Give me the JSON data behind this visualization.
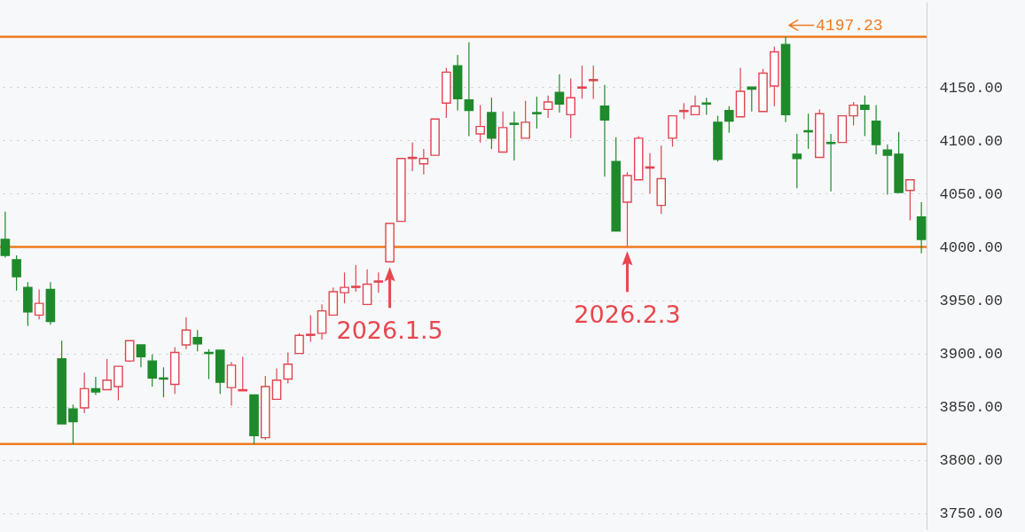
{
  "chart_data": {
    "type": "candlestick",
    "categories": [
      null,
      null,
      null,
      null,
      null,
      null,
      null,
      null,
      null,
      null,
      null,
      null,
      null,
      null,
      null,
      null,
      null,
      null,
      null,
      null,
      null,
      null,
      null,
      null,
      null,
      null,
      null,
      null,
      null,
      null,
      null,
      null,
      null,
      null,
      null,
      null,
      null,
      null,
      null,
      null,
      null,
      null,
      null,
      null,
      null,
      null,
      null,
      null,
      null,
      null,
      null,
      null,
      null,
      null,
      null,
      null,
      null,
      null,
      null,
      null,
      null,
      null,
      null,
      null,
      null,
      null,
      null,
      null,
      null,
      null,
      null,
      null,
      null,
      null,
      null,
      null,
      null,
      null,
      null,
      null,
      null,
      null
    ],
    "ohlc": [
      [
        4007,
        4033,
        3990,
        3992
      ],
      [
        3988,
        3992,
        3959,
        3972
      ],
      [
        3962,
        3967,
        3926,
        3939
      ],
      [
        3936,
        3960,
        3932,
        3947
      ],
      [
        3960,
        3967,
        3927,
        3930
      ],
      [
        3895,
        3912,
        3834,
        3834
      ],
      [
        3848,
        3852,
        3815,
        3836
      ],
      [
        3849,
        3882,
        3844,
        3867
      ],
      [
        3867,
        3878,
        3861,
        3864
      ],
      [
        3866,
        3895,
        3866,
        3875
      ],
      [
        3869,
        3888,
        3856,
        3888
      ],
      [
        3893,
        3912,
        3892,
        3912
      ],
      [
        3908,
        3908,
        3887,
        3897
      ],
      [
        3893,
        3899,
        3869,
        3877
      ],
      [
        3877,
        3887,
        3859,
        3876
      ],
      [
        3871,
        3906,
        3862,
        3901
      ],
      [
        3908,
        3934,
        3904,
        3922
      ],
      [
        3915,
        3922,
        3902,
        3909
      ],
      [
        3901,
        3904,
        3876,
        3900
      ],
      [
        3903,
        3903,
        3862,
        3873
      ],
      [
        3868,
        3892,
        3851,
        3889
      ],
      [
        3865,
        3897,
        3865,
        3866
      ],
      [
        3861,
        3861,
        3815,
        3823
      ],
      [
        3821,
        3879,
        3819,
        3869
      ],
      [
        3857,
        3886,
        3857,
        3875
      ],
      [
        3876,
        3901,
        3872,
        3890
      ],
      [
        3900,
        3919,
        3900,
        3917
      ],
      [
        3917,
        3936,
        3911,
        3918
      ],
      [
        3919,
        3946,
        3913,
        3940
      ],
      [
        3936,
        3962,
        3936,
        3958
      ],
      [
        3957,
        3976,
        3947,
        3962
      ],
      [
        3962,
        3983,
        3958,
        3963
      ],
      [
        3946,
        3979,
        3946,
        3965
      ],
      [
        3967,
        3976,
        3957,
        3968
      ],
      [
        3986,
        4022,
        3986,
        4022
      ],
      [
        4024,
        4083,
        4024,
        4083
      ],
      [
        4083,
        4098,
        4071,
        4084
      ],
      [
        4078,
        4092,
        4068,
        4083
      ],
      [
        4086,
        4120,
        4086,
        4120
      ],
      [
        4135,
        4168,
        4121,
        4164
      ],
      [
        4170,
        4180,
        4128,
        4139
      ],
      [
        4138,
        4192,
        4104,
        4128
      ],
      [
        4106,
        4133,
        4098,
        4113
      ],
      [
        4126,
        4140,
        4092,
        4102
      ],
      [
        4089,
        4127,
        4089,
        4112
      ],
      [
        4116,
        4127,
        4081,
        4115
      ],
      [
        4102,
        4137,
        4102,
        4117
      ],
      [
        4126,
        4141,
        4111,
        4125
      ],
      [
        4129,
        4142,
        4121,
        4136
      ],
      [
        4145,
        4162,
        4126,
        4134
      ],
      [
        4124,
        4158,
        4102,
        4140
      ],
      [
        4149,
        4170,
        4139,
        4150
      ],
      [
        4156,
        4170,
        4139,
        4157
      ],
      [
        4132,
        4152,
        4066,
        4119
      ],
      [
        4080,
        4103,
        4015,
        4015
      ],
      [
        4042,
        4070,
        4001,
        4067
      ],
      [
        4063,
        4104,
        4063,
        4102
      ],
      [
        4074,
        4088,
        4050,
        4075
      ],
      [
        4039,
        4095,
        4031,
        4064
      ],
      [
        4102,
        4123,
        4094,
        4123
      ],
      [
        4127,
        4135,
        4120,
        4128
      ],
      [
        4124,
        4142,
        4124,
        4132
      ],
      [
        4135,
        4140,
        4124,
        4134
      ],
      [
        4117,
        4123,
        4080,
        4082
      ],
      [
        4128,
        4132,
        4107,
        4118
      ],
      [
        4122,
        4168,
        4122,
        4146
      ],
      [
        4150,
        4150,
        4127,
        4148
      ],
      [
        4127,
        4167,
        4127,
        4163
      ],
      [
        4151,
        4188,
        4132,
        4183
      ],
      [
        4190,
        4197.23,
        4117,
        4124
      ],
      [
        4087,
        4106,
        4055,
        4083
      ],
      [
        4109,
        4125,
        4092,
        4108
      ],
      [
        4084,
        4129,
        4084,
        4125
      ],
      [
        4098,
        4106,
        4052,
        4097
      ],
      [
        4098,
        4123,
        4098,
        4123
      ],
      [
        4123,
        4136,
        4114,
        4133
      ],
      [
        4133,
        4142,
        4104,
        4129
      ],
      [
        4118,
        4133,
        4087,
        4096
      ],
      [
        4091,
        4096,
        4049,
        4086
      ],
      [
        4087,
        4108,
        4051,
        4051
      ],
      [
        4053,
        4063,
        4025,
        4063
      ],
      [
        4028,
        4042,
        3994,
        4007
      ]
    ],
    "ylim": [
      3735,
      4230
    ],
    "yticks": [
      {
        "value": 3750,
        "label": "3750.00"
      },
      {
        "value": 3800,
        "label": "3800.00"
      },
      {
        "value": 3850,
        "label": "3850.00"
      },
      {
        "value": 3900,
        "label": "3900.00"
      },
      {
        "value": 3950,
        "label": "3950.00"
      },
      {
        "value": 4000,
        "label": "4000.00"
      },
      {
        "value": 4050,
        "label": "4050.00"
      },
      {
        "value": 4100,
        "label": "4100.00"
      },
      {
        "value": 4150,
        "label": "4150.00"
      }
    ],
    "grid": "y",
    "tick_labels": "y",
    "ref_lines": [
      {
        "axis": "y",
        "value": 4197.23,
        "label": "4197.23",
        "color": "#f07a1e"
      },
      {
        "axis": "y",
        "value": 4000,
        "color": "#f07a1e"
      },
      {
        "axis": "y",
        "value": 3815,
        "color": "#f07a1e"
      }
    ],
    "annotations": [
      {
        "text": "2026.1.5",
        "y": 3986
      },
      {
        "text": "2026.2.3",
        "y": 4001
      }
    ]
  }
}
